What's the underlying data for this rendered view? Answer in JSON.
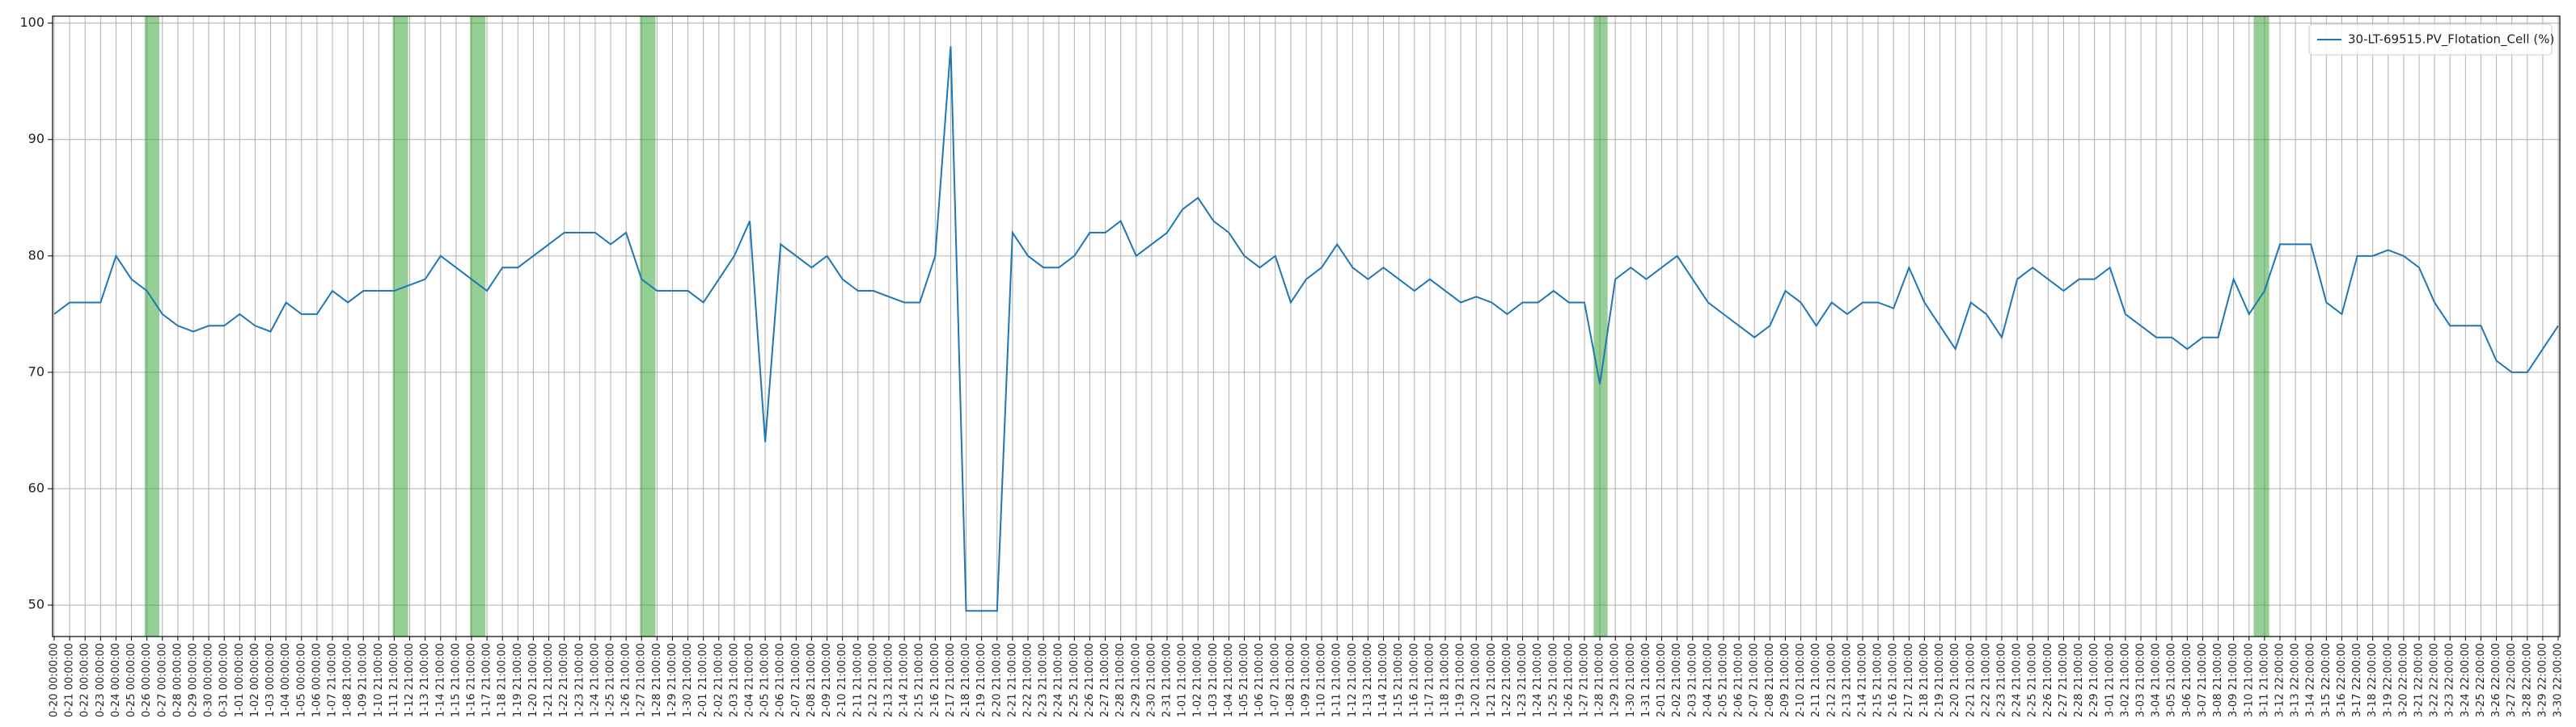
{
  "chart_data": {
    "type": "line",
    "categories": [
      "0-20 00:00:00",
      "0-21 00:00:00",
      "0-22 00:00:00",
      "0-23 00:00:00",
      "0-24 00:00:00",
      "0-25 00:00:00",
      "0-26 00:00:00",
      "0-27 00:00:00",
      "0-28 00:00:00",
      "0-29 00:00:00",
      "0-30 00:00:00",
      "0-31 00:00:00",
      "1-01 00:00:00",
      "1-02 00:00:00",
      "1-03 00:00:00",
      "1-04 00:00:00",
      "1-05 00:00:00",
      "1-06 00:00:00",
      "1-07 21:00:00",
      "1-08 21:00:00",
      "1-09 21:00:00",
      "1-10 21:00:00",
      "1-11 21:00:00",
      "1-12 21:00:00",
      "1-13 21:00:00",
      "1-14 21:00:00",
      "1-15 21:00:00",
      "1-16 21:00:00",
      "1-17 21:00:00",
      "1-18 21:00:00",
      "1-19 21:00:00",
      "1-20 21:00:00",
      "1-21 21:00:00",
      "1-22 21:00:00",
      "1-23 21:00:00",
      "1-24 21:00:00",
      "1-25 21:00:00",
      "1-26 21:00:00",
      "1-27 21:00:00",
      "1-28 21:00:00",
      "1-29 21:00:00",
      "1-30 21:00:00",
      "2-01 21:00:00",
      "2-02 21:00:00",
      "2-03 21:00:00",
      "2-04 21:00:00",
      "2-05 21:00:00",
      "2-06 21:00:00",
      "2-07 21:00:00",
      "2-08 21:00:00",
      "2-09 21:00:00",
      "2-10 21:00:00",
      "2-11 21:00:00",
      "2-12 21:00:00",
      "2-13 21:00:00",
      "2-14 21:00:00",
      "2-15 21:00:00",
      "2-16 21:00:00",
      "2-17 21:00:00",
      "2-18 21:00:00",
      "2-19 21:00:00",
      "2-20 21:00:00",
      "2-21 21:00:00",
      "2-22 21:00:00",
      "2-23 21:00:00",
      "2-24 21:00:00",
      "2-25 21:00:00",
      "2-26 21:00:00",
      "2-27 21:00:00",
      "2-28 21:00:00",
      "2-29 21:00:00",
      "2-30 21:00:00",
      "2-31 21:00:00",
      "1-01 21:00:00",
      "1-02 21:00:00",
      "1-03 21:00:00",
      "1-04 21:00:00",
      "1-05 21:00:00",
      "1-06 21:00:00",
      "1-07 21:00:00",
      "1-08 21:00:00",
      "1-09 21:00:00",
      "1-10 21:00:00",
      "1-11 21:00:00",
      "1-12 21:00:00",
      "1-13 21:00:00",
      "1-14 21:00:00",
      "1-15 21:00:00",
      "1-16 21:00:00",
      "1-17 21:00:00",
      "1-18 21:00:00",
      "1-19 21:00:00",
      "1-20 21:00:00",
      "1-21 21:00:00",
      "1-22 21:00:00",
      "1-23 21:00:00",
      "1-24 21:00:00",
      "1-25 21:00:00",
      "1-26 21:00:00",
      "1-27 21:00:00",
      "1-28 21:00:00",
      "1-29 21:00:00",
      "1-30 21:00:00",
      "1-31 21:00:00",
      "2-01 21:00:00",
      "2-02 21:00:00",
      "2-03 21:00:00",
      "2-04 21:00:00",
      "2-05 21:00:00",
      "2-06 21:00:00",
      "2-07 21:00:00",
      "2-08 21:00:00",
      "2-09 21:00:00",
      "2-10 21:00:00",
      "2-11 21:00:00",
      "2-12 21:00:00",
      "2-13 21:00:00",
      "2-14 21:00:00",
      "2-15 21:00:00",
      "2-16 21:00:00",
      "2-17 21:00:00",
      "2-18 21:00:00",
      "2-19 21:00:00",
      "2-20 21:00:00",
      "2-21 21:00:00",
      "2-22 21:00:00",
      "2-23 21:00:00",
      "2-24 21:00:00",
      "2-25 21:00:00",
      "2-26 21:00:00",
      "2-27 21:00:00",
      "2-28 21:00:00",
      "2-29 21:00:00",
      "3-01 21:00:00",
      "3-02 21:00:00",
      "3-03 21:00:00",
      "3-04 21:00:00",
      "3-05 21:00:00",
      "3-06 21:00:00",
      "3-07 21:00:00",
      "3-08 21:00:00",
      "3-09 21:00:00",
      "3-10 21:00:00",
      "3-11 21:00:00",
      "3-12 22:00:00",
      "3-13 22:00:00",
      "3-14 22:00:00",
      "3-15 22:00:00",
      "3-16 22:00:00",
      "3-17 22:00:00",
      "3-18 22:00:00",
      "3-19 22:00:00",
      "3-20 22:00:00",
      "3-21 22:00:00",
      "3-22 22:00:00",
      "3-23 22:00:00",
      "3-24 22:00:00",
      "3-25 22:00:00",
      "3-26 22:00:00",
      "3-27 22:00:00",
      "3-28 22:00:00",
      "3-29 22:00:00",
      "3-30 22:00:00"
    ],
    "series": [
      {
        "name": "30-LT-69515.PV_Flotation_Cell (%)",
        "color": "#1f77b4",
        "values": [
          75,
          76,
          76,
          76,
          80,
          78,
          77,
          75,
          74,
          73.5,
          74,
          74,
          75,
          74,
          73.5,
          76,
          75,
          75,
          77,
          76,
          77,
          77,
          77,
          77.5,
          78,
          80,
          79,
          78,
          77,
          79,
          79,
          80,
          81,
          82,
          82,
          82,
          81,
          82,
          78,
          77,
          77,
          77,
          76,
          78,
          80,
          83,
          64,
          81,
          80,
          79,
          80,
          78,
          77,
          77,
          76.5,
          76,
          76,
          80,
          98,
          49.5,
          49.5,
          49.5,
          82,
          80,
          79,
          79,
          80,
          82,
          82,
          83,
          80,
          81,
          82,
          84,
          85,
          83,
          82,
          80,
          79,
          80,
          76,
          78,
          79,
          81,
          79,
          78,
          79,
          78,
          77,
          78,
          77,
          76,
          76.5,
          76,
          75,
          76,
          76,
          77,
          76,
          76,
          69,
          78,
          79,
          78,
          79,
          80,
          78,
          76,
          75,
          74,
          73,
          74,
          77,
          76,
          74,
          76,
          75,
          76,
          76,
          75.5,
          79,
          76,
          74,
          72,
          76,
          75,
          73,
          78,
          79,
          78,
          77,
          78,
          78,
          79,
          75,
          74,
          73,
          73,
          72,
          73,
          73,
          78,
          75,
          77,
          81,
          81,
          81,
          76,
          75,
          80,
          80,
          80.5,
          80,
          79,
          76,
          74,
          74,
          74,
          71,
          70,
          70,
          72,
          74
        ]
      }
    ],
    "spans": [
      {
        "start": 5.85,
        "end": 6.8
      },
      {
        "start": 21.9,
        "end": 22.9
      },
      {
        "start": 26.9,
        "end": 27.9
      },
      {
        "start": 37.9,
        "end": 38.9
      },
      {
        "start": 99.6,
        "end": 100.5
      },
      {
        "start": 142.3,
        "end": 143.3
      }
    ],
    "span_color": "#2ca02c",
    "ylim": [
      47.3,
      100.6
    ],
    "yticks": [
      50,
      60,
      70,
      80,
      90,
      100
    ],
    "grid": true,
    "legend": "upper right"
  }
}
